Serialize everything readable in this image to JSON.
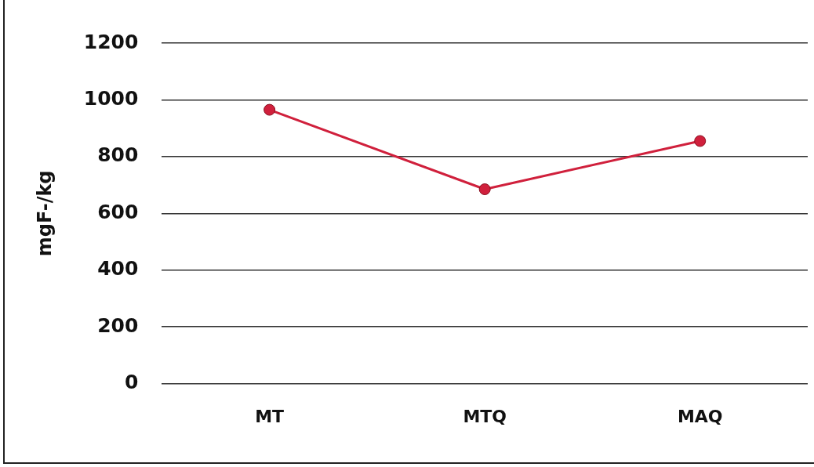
{
  "chart_data": {
    "type": "line",
    "ylabel": "mgF-/kg",
    "categories": [
      "MT",
      "MTQ",
      "MAQ"
    ],
    "series": [
      {
        "color": "#d0203c",
        "values": [
          965,
          685,
          855
        ]
      }
    ],
    "ylim": [
      0,
      1200
    ],
    "yticks": [
      0,
      200,
      400,
      600,
      800,
      1000,
      1200
    ],
    "grid": "y",
    "legend": false,
    "marker": "circle",
    "line_style": "solid"
  }
}
